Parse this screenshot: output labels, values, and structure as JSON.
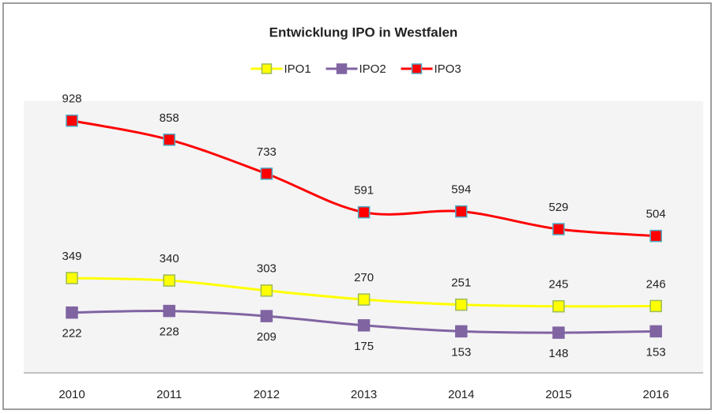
{
  "chart_data": {
    "type": "line",
    "title": "Entwicklung IPO in Westfalen",
    "categories": [
      "2010",
      "2011",
      "2012",
      "2013",
      "2014",
      "2015",
      "2016"
    ],
    "series": [
      {
        "name": "IPO1",
        "color": "#ffff00",
        "values": [
          349,
          340,
          303,
          270,
          251,
          245,
          246
        ]
      },
      {
        "name": "IPO2",
        "color": "#8064a2",
        "values": [
          222,
          228,
          209,
          175,
          153,
          148,
          153
        ]
      },
      {
        "name": "IPO3",
        "color": "#ff0000",
        "values": [
          928,
          858,
          733,
          591,
          594,
          529,
          504
        ]
      }
    ],
    "ylim": [
      0,
      1000
    ]
  }
}
